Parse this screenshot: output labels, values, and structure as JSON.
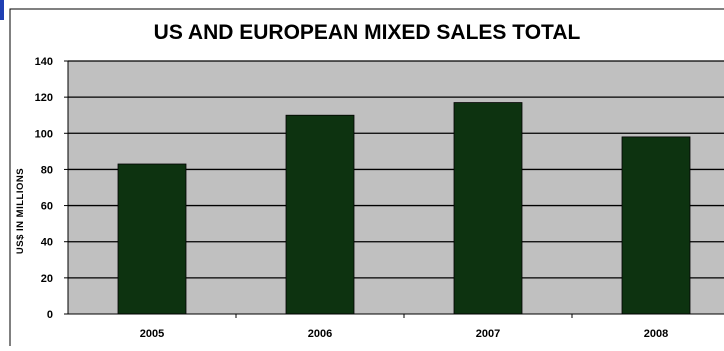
{
  "chart_data": {
    "type": "bar",
    "title": "US AND EUROPEAN MIXED SALES TOTAL",
    "xlabel": "",
    "ylabel": "US$ IN MILLIONS",
    "categories": [
      "2005",
      "2006",
      "2007",
      "2008"
    ],
    "values": [
      83,
      110,
      117,
      98
    ],
    "ylim": [
      0,
      140
    ],
    "yticks": [
      0,
      20,
      40,
      60,
      80,
      100,
      120,
      140
    ],
    "grid": true,
    "legend": "none",
    "colors": {
      "bar": "#0d3310",
      "plot_background": "#c0c0c0",
      "gridline": "#000000",
      "frame": "#000000",
      "accent_corner": "#1f3fb3"
    }
  }
}
